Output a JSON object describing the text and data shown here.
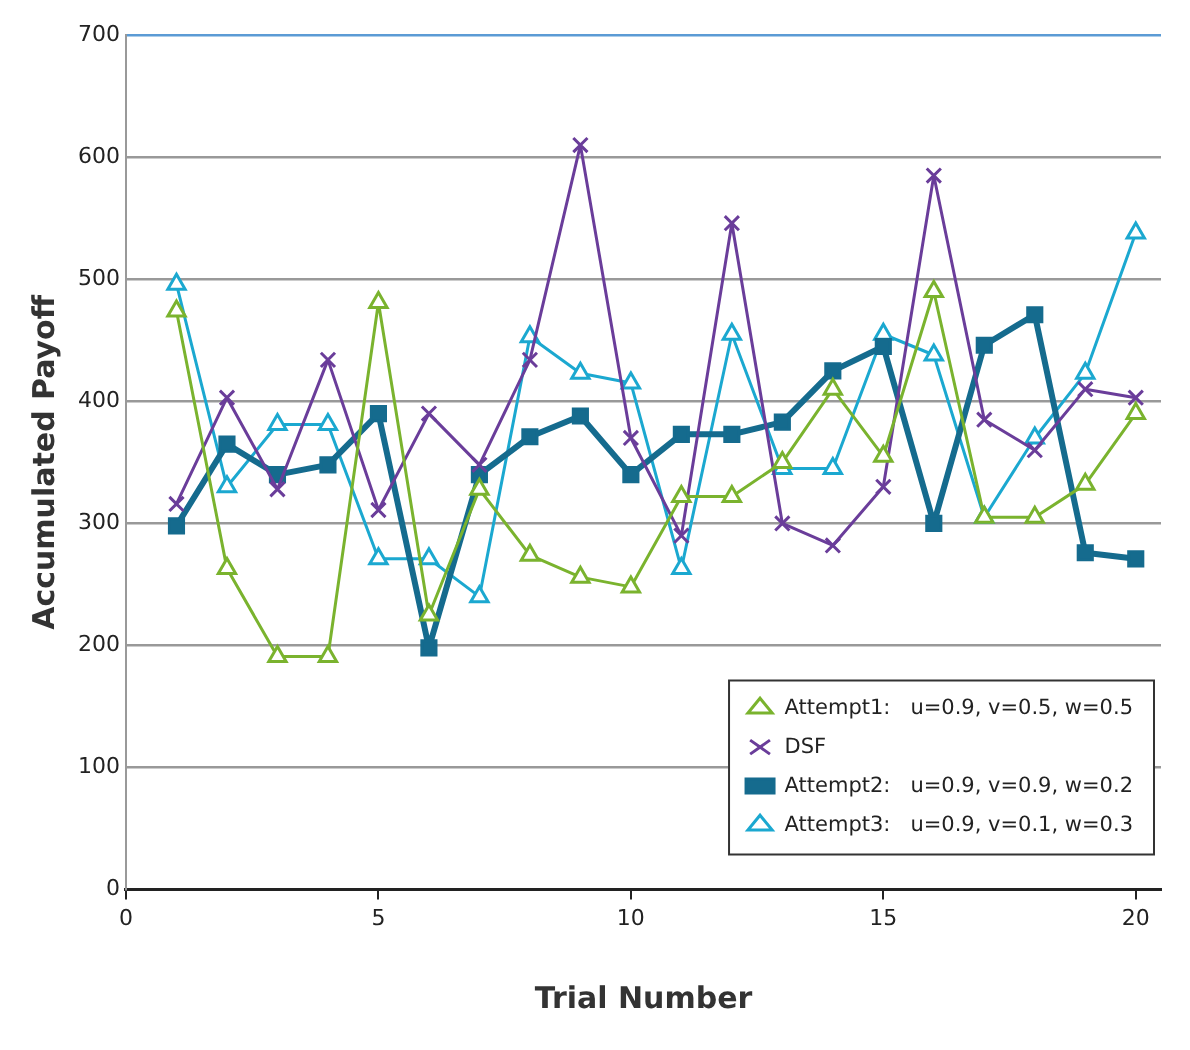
{
  "chart_data": {
    "type": "line",
    "xlabel": "Trial Number",
    "ylabel": "Accumulated Payoff",
    "x": [
      1,
      2,
      3,
      4,
      5,
      6,
      7,
      8,
      9,
      10,
      11,
      12,
      13,
      14,
      15,
      16,
      17,
      18,
      19,
      20
    ],
    "xlim": [
      0,
      20.5
    ],
    "xticks": [
      0,
      5,
      10,
      15,
      20
    ],
    "ylim": [
      0,
      700
    ],
    "yticks": [
      0,
      100,
      200,
      300,
      400,
      500,
      600,
      700
    ],
    "grid": "y",
    "legend": "bottom right",
    "line_style": "solid",
    "series": [
      {
        "name": "Attempt1:   u=0.9, v=0.5, w=0.5",
        "color": "#7ab32e",
        "marker": "triangle",
        "values": [
          474,
          263,
          191,
          191,
          481,
          225,
          328,
          274,
          256,
          248,
          322,
          322,
          350,
          410,
          355,
          490,
          305,
          305,
          332,
          390
        ]
      },
      {
        "name": "DSF",
        "color": "#6a3d9a",
        "marker": "cross",
        "values": [
          316,
          403,
          328,
          434,
          311,
          390,
          348,
          434,
          610,
          370,
          290,
          546,
          300,
          282,
          330,
          585,
          385,
          360,
          410,
          403
        ]
      },
      {
        "name": "Attempt2:   u=0.9, v=0.9, w=0.2",
        "color": "#156b8e",
        "marker": "square",
        "values": [
          298,
          365,
          340,
          348,
          390,
          198,
          340,
          371,
          388,
          340,
          373,
          373,
          383,
          425,
          445,
          300,
          446,
          471,
          276,
          271
        ]
      },
      {
        "name": "Attempt3:   u=0.9, v=0.1, w=0.3",
        "color": "#1ba8d0",
        "marker": "triangle",
        "values": [
          496,
          330,
          381,
          381,
          271,
          271,
          240,
          453,
          423,
          415,
          263,
          455,
          345,
          345,
          455,
          438,
          305,
          370,
          423,
          538
        ]
      }
    ]
  }
}
